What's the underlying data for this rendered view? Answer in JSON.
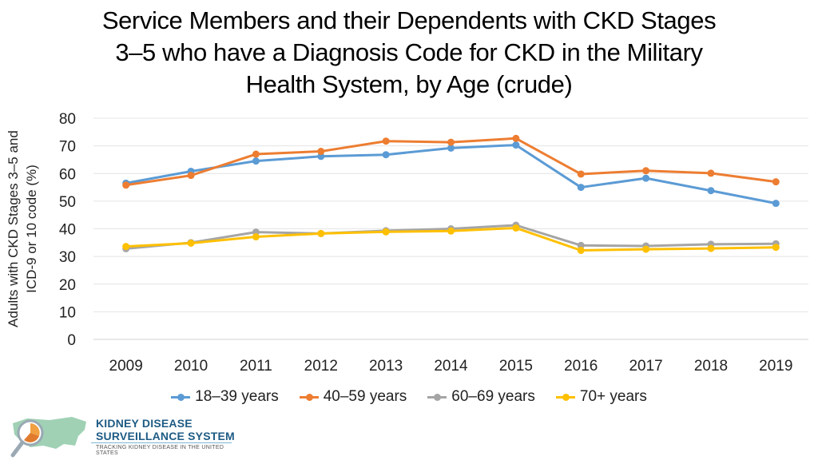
{
  "title_lines": [
    "Service Members and their Dependents with CKD Stages",
    "3–5 who have a Diagnosis Code for CKD in the Military",
    "Health System, by Age (crude)"
  ],
  "chart_data": {
    "type": "line",
    "ylabel_lines": [
      "Adults with CKD Stages 3–5 and",
      "ICD-9 or 10 code (%)"
    ],
    "xlabel": "",
    "ylim": [
      0,
      80
    ],
    "yticks": [
      0,
      10,
      20,
      30,
      40,
      50,
      60,
      70,
      80
    ],
    "grid": true,
    "legend_position": "bottom",
    "categories": [
      "2009",
      "2010",
      "2011",
      "2012",
      "2013",
      "2014",
      "2015",
      "2016",
      "2017",
      "2018",
      "2019"
    ],
    "series": [
      {
        "name": "18–39 years",
        "color": "#5b9bd5",
        "values": [
          56.5,
          60.8,
          64.5,
          66.2,
          66.8,
          69.2,
          70.3,
          55.0,
          58.3,
          53.8,
          49.2
        ]
      },
      {
        "name": "40–59 years",
        "color": "#ed7d31",
        "values": [
          55.8,
          59.3,
          67.0,
          68.0,
          71.7,
          71.3,
          72.7,
          59.8,
          61.0,
          60.1,
          57.0
        ]
      },
      {
        "name": "60–69 years",
        "color": "#a5a5a5",
        "values": [
          32.8,
          35.0,
          38.8,
          38.3,
          39.3,
          40.0,
          41.3,
          34.0,
          33.8,
          34.4,
          34.6
        ]
      },
      {
        "name": "70+ years",
        "color": "#ffc000",
        "values": [
          33.6,
          34.8,
          37.1,
          38.3,
          38.9,
          39.2,
          40.3,
          32.2,
          32.6,
          32.9,
          33.3
        ]
      }
    ]
  },
  "logo": {
    "line1": "KIDNEY DISEASE",
    "line2": "SURVEILLANCE SYSTEM",
    "line3": "TRACKING KIDNEY DISEASE IN THE UNITED STATES",
    "colors": {
      "text": "#1e5b84",
      "map": "#8fc9a8",
      "circle": "#f0a040"
    }
  }
}
